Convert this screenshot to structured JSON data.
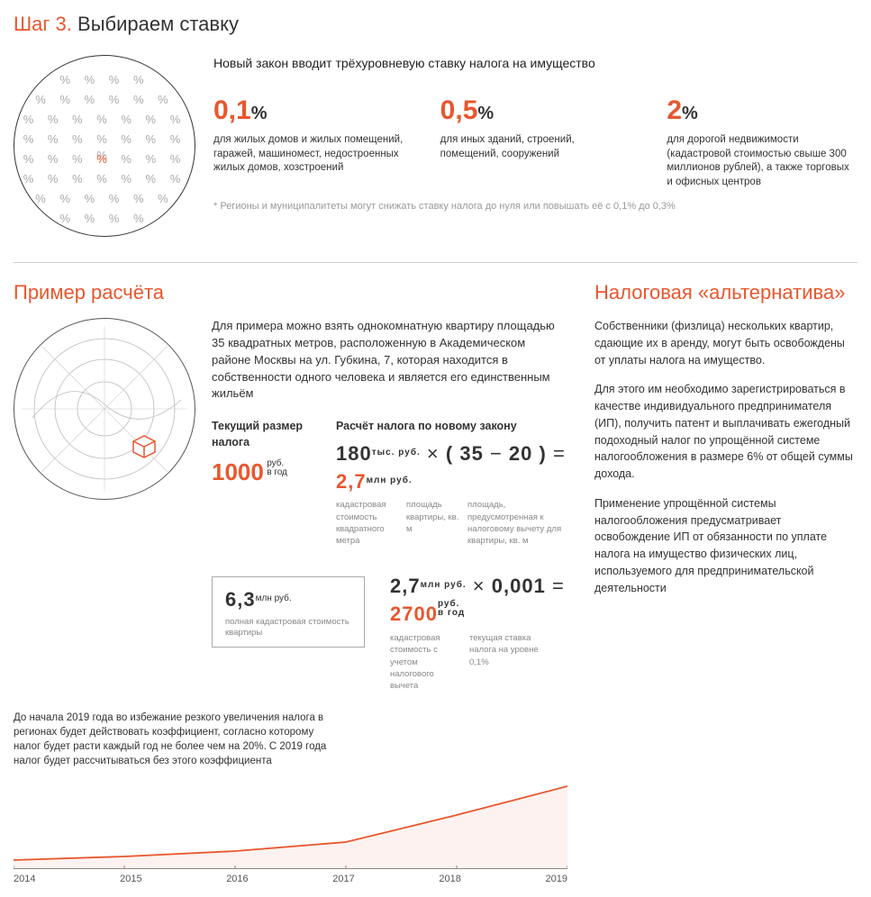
{
  "header": {
    "step": "Шаг 3.",
    "title": "Выбираем ставку"
  },
  "intro": "Новый закон вводит трёхуровневую ставку налога на имущество",
  "rates": [
    {
      "value": "0,1",
      "pct": "%",
      "desc": "для жилых домов и жилых помещений, гаражей, машиномест, недостроенных жилых домов, хозстроений"
    },
    {
      "value": "0,5",
      "pct": "%",
      "desc": "для иных зданий, строений, помещений, сооружений"
    },
    {
      "value": "2",
      "pct": "%",
      "desc": "для дорогой недвижимости (кадастровой стоимостью свыше 300 миллионов рублей), а также торговых и офисных центров"
    }
  ],
  "footnote": "* Регионы и муниципалитеты могут снижать ставку налога до нуля или повышать её с 0,1% до 0,3%",
  "example": {
    "head": "Пример расчёта",
    "text": "Для примера можно взять однокомнатную квартиру площадью 35 квадратных метров, расположенную в Академическом районе Москвы на ул. Губкина, 7, которая находится в собственности одного человека и является его единственным жильём",
    "current_label": "Текущий размер налога",
    "current_value": "1000",
    "current_unit1": "руб.",
    "current_unit2": "в год",
    "new_label": "Расчёт налога по новому закону",
    "f1_a": "180",
    "f1_a_unit": "тыс. руб.",
    "f1_b": "35",
    "f1_c": "20",
    "f1_r": "2,7",
    "f1_r_unit": "млн руб.",
    "f1_lab_a": "кадастровая стоимость квадратного метра",
    "f1_lab_b": "площадь квартиры, кв. м",
    "f1_lab_c": "площадь, предусмотренная к налоговому вычету для квартиры, кв. м",
    "box_val": "6,3",
    "box_unit": "млн руб.",
    "box_lab": "полная кадастровая стоимость квартиры",
    "f2_a": "2,7",
    "f2_a_unit": "млн руб.",
    "f2_b": "0,001",
    "f2_r": "2700",
    "f2_r_unit1": "руб.",
    "f2_r_unit2": "в год",
    "f2_lab_a": "кадастровая стоимость с учетом налогового вычета",
    "f2_lab_b": "текущая ставка налога на уровне 0,1%",
    "grownote": "До начала 2019 года во избежание резкого увеличения налога в регионах будет действовать коэффициент, согласно которому налог будет расти каждый год не более чем на 20%. С 2019 года налог будет рассчитываться без этого коэффициента"
  },
  "chart": {
    "years": [
      "2014",
      "2015",
      "2016",
      "2017",
      "2018",
      "2019"
    ],
    "values": [
      10,
      14,
      20,
      30,
      60,
      92
    ],
    "line_color": "#e8572e",
    "fill_color": "rgba(232,87,46,0.08)",
    "xmax": 5,
    "ymax": 100
  },
  "alt": {
    "head": "Налоговая «альтернатива»",
    "p1": "Собственники (физлица) нескольких квартир, сдающие их в аренду, могут быть освобождены от уплаты налога на имущество.",
    "p2": "Для этого им необходимо зарегистрироваться в качестве индивидуального предпринимателя (ИП), получить патент и выплачивать ежегодный подоходный налог по упрощённой системе налогообложения в размере 6% от общей суммы дохода.",
    "p3": "Применение упрощённой системы налогообложения предусматривает освобождение ИП от обязанности по уплате налога на имущество физических лиц, используемого для предпринимательской деятельности"
  },
  "colors": {
    "accent": "#e8572e",
    "text": "#333333",
    "muted": "#999999"
  }
}
